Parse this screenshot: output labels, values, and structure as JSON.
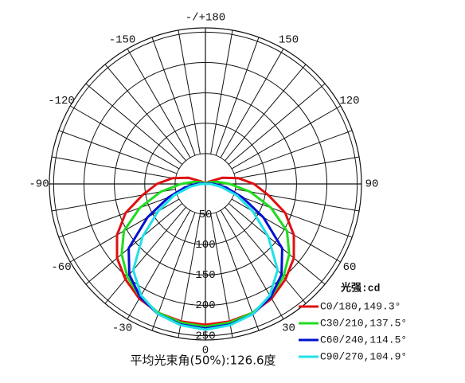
{
  "chart_data": {
    "type": "polar",
    "caption": "平均光束角(50%):126.6度",
    "legend_title": "光强:cd",
    "theta": [
      -180,
      -170,
      -160,
      -150,
      -140,
      -130,
      -120,
      -110,
      -100,
      -90,
      -80,
      -70,
      -60,
      -50,
      -40,
      -30,
      -20,
      -10,
      0,
      10,
      20,
      30,
      40,
      50,
      60,
      70,
      80,
      90,
      100,
      110,
      120,
      130,
      140,
      150,
      160,
      170,
      180
    ],
    "thetaticks": [
      {
        "value": 180,
        "label": "-/+180"
      },
      -150,
      -120,
      -90,
      -60,
      -30,
      0,
      30,
      60,
      90,
      120,
      150
    ],
    "rlim": [
      0,
      257
    ],
    "rticks": [
      50,
      100,
      150,
      200,
      250
    ],
    "series": [
      {
        "name": "C0/180,149.3°",
        "color": "#e01010",
        "values": [
          0,
          0,
          0,
          0,
          1,
          3,
          8,
          30,
          55,
          80,
          105,
          140,
          168,
          190,
          205,
          218,
          226,
          230,
          232,
          230,
          226,
          218,
          205,
          190,
          168,
          140,
          105,
          80,
          55,
          30,
          8,
          3,
          1,
          0,
          0,
          0,
          0
        ]
      },
      {
        "name": "C30/210,137.5°",
        "color": "#20dd20",
        "values": [
          0,
          0,
          0,
          0,
          0,
          0,
          3,
          8,
          20,
          40,
          75,
          115,
          155,
          180,
          200,
          215,
          226,
          232,
          235,
          232,
          226,
          215,
          200,
          180,
          155,
          115,
          75,
          40,
          20,
          8,
          3,
          0,
          0,
          0,
          0,
          0,
          0
        ]
      },
      {
        "name": "C60/240,114.5°",
        "color": "#0010d0",
        "values": [
          0,
          0,
          0,
          0,
          0,
          0,
          0,
          0,
          5,
          15,
          35,
          65,
          110,
          165,
          195,
          215,
          228,
          235,
          238,
          235,
          228,
          215,
          195,
          165,
          110,
          65,
          35,
          15,
          5,
          0,
          0,
          0,
          0,
          0,
          0,
          0,
          0
        ]
      },
      {
        "name": "C90/270,104.9°",
        "color": "#20e0e8",
        "values": [
          0,
          0,
          0,
          0,
          0,
          0,
          0,
          0,
          0,
          8,
          25,
          55,
          90,
          135,
          185,
          212,
          228,
          236,
          240,
          236,
          228,
          212,
          185,
          135,
          90,
          55,
          25,
          8,
          0,
          0,
          0,
          0,
          0,
          0,
          0,
          0,
          0
        ]
      }
    ]
  }
}
